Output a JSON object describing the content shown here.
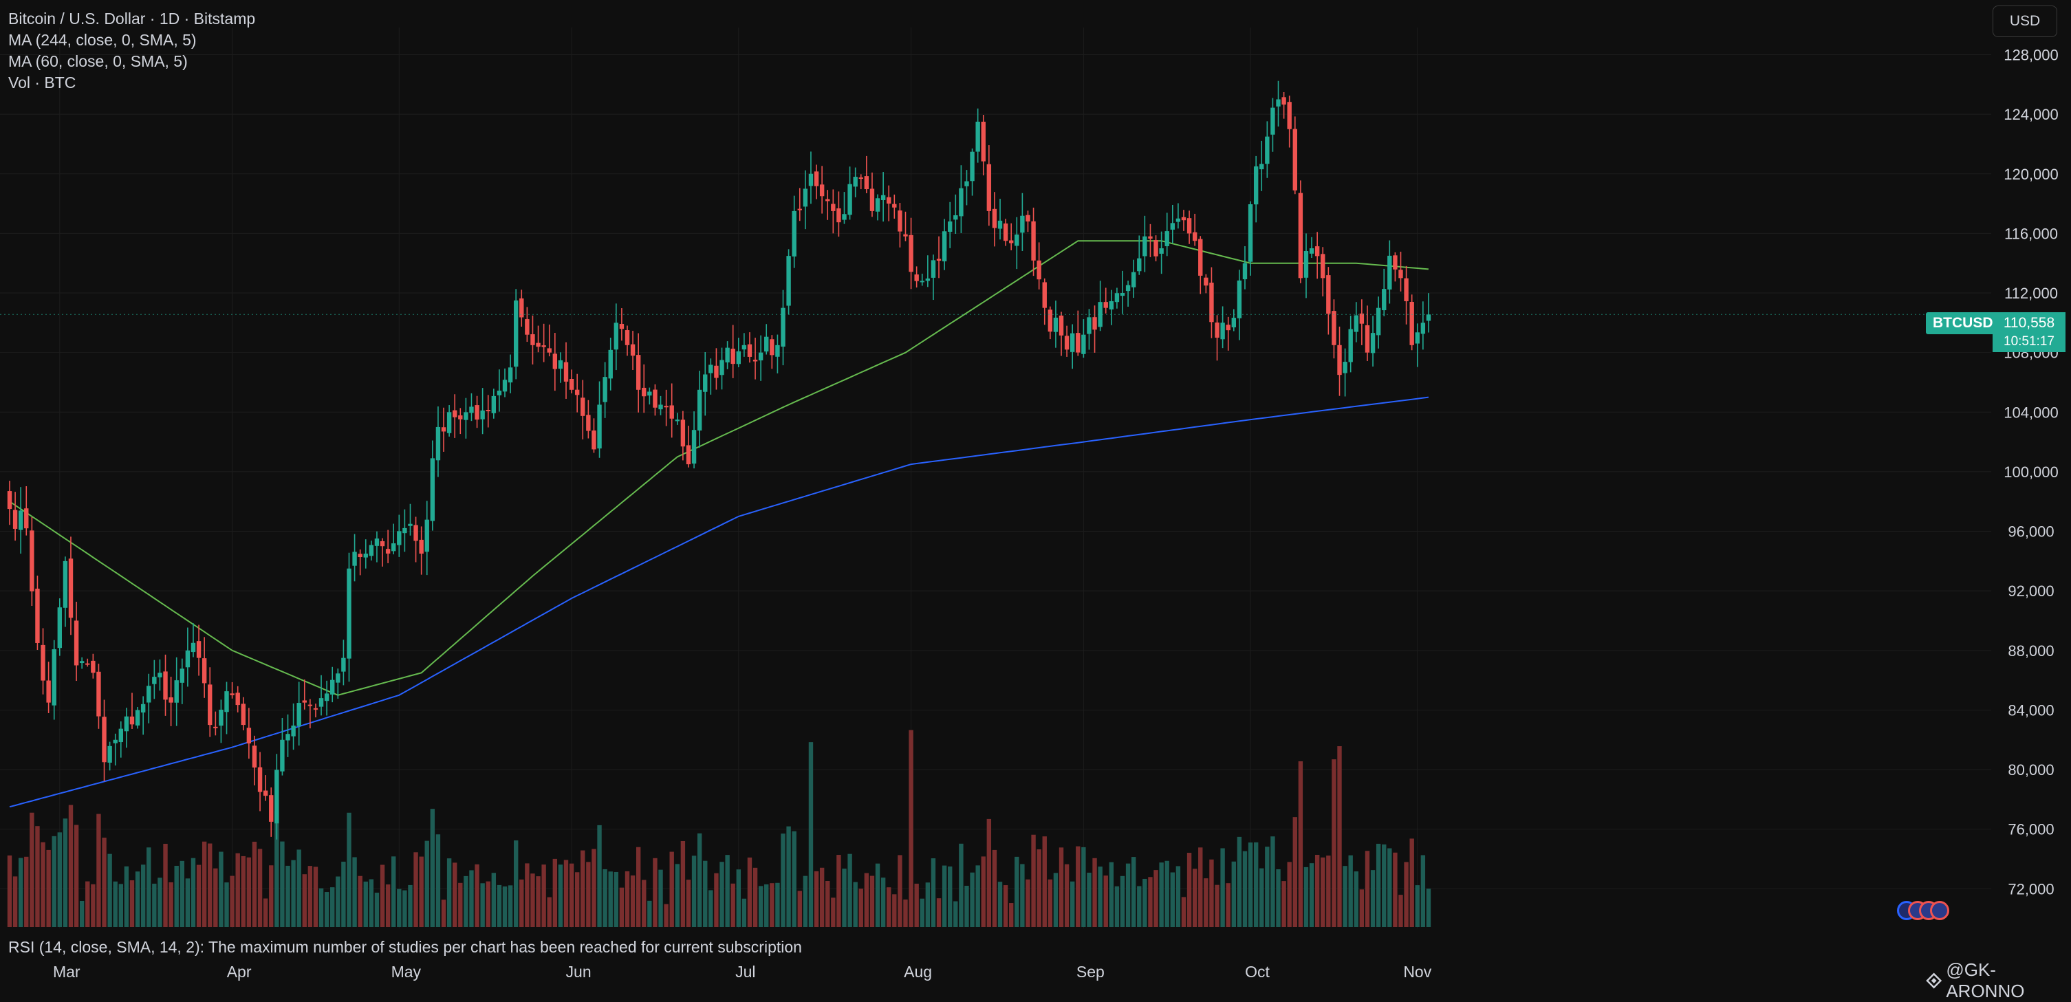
{
  "legend": {
    "symbol": "Bitcoin / U.S. Dollar · 1D · Bitstamp",
    "ma244": "MA (244, close, 0, SMA, 5)",
    "ma60": "MA (60, close, 0, SMA, 5)",
    "vol": "Vol · BTC"
  },
  "currency_button": "USD",
  "price_tag": {
    "ticker": "BTCUSD",
    "price": "110,558",
    "countdown": "10:51:17"
  },
  "rsi_message": "RSI (14, close, SMA, 14, 2): The maximum number of studies per chart has been reached for current subscription",
  "attribution": "@GK-ARONNO",
  "colors": {
    "up": "#22ab94",
    "down": "#ef5350",
    "up_vol": "#1e5d55",
    "down_vol": "#7a2e2e",
    "ma60": "#66bb4f",
    "ma244": "#2962ff",
    "background": "#0f0f0f",
    "grid": "#1d1d1d",
    "text": "#d1d4dc"
  },
  "chart_data": {
    "type": "candlestick",
    "title": "Bitcoin / U.S. Dollar · 1D · Bitstamp",
    "y_axis_ticks": [
      72000,
      76000,
      80000,
      84000,
      88000,
      92000,
      96000,
      100000,
      104000,
      108000,
      112000,
      116000,
      120000,
      124000,
      128000
    ],
    "y_axis_labels": [
      "72,000",
      "76,000",
      "80,000",
      "84,000",
      "88,000",
      "92,000",
      "96,000",
      "100,000",
      "104,000",
      "108,000",
      "112,000",
      "116,000",
      "120,000",
      "124,000",
      "128,000"
    ],
    "x_axis_labels": [
      "Mar",
      "Apr",
      "May",
      "Jun",
      "Jul",
      "Aug",
      "Sep",
      "Oct",
      "Nov"
    ],
    "ylim": [
      69800,
      129500
    ],
    "last_price": 110558,
    "close_anchors": [
      [
        "Feb 20",
        97500
      ],
      [
        "Feb 23",
        96200
      ],
      [
        "Feb 25",
        88500
      ],
      [
        "Feb 27",
        84500
      ],
      [
        "Mar 2",
        94000
      ],
      [
        "Mar 4",
        87000
      ],
      [
        "Mar 7",
        86500
      ],
      [
        "Mar 9",
        80500
      ],
      [
        "Mar 11",
        82000
      ],
      [
        "Mar 15",
        84000
      ],
      [
        "Mar 19",
        86500
      ],
      [
        "Mar 21",
        84500
      ],
      [
        "Mar 24",
        88000
      ],
      [
        "Mar 26",
        87500
      ],
      [
        "Mar 28",
        83000
      ],
      [
        "Apr 1",
        85000
      ],
      [
        "Apr 3",
        83000
      ],
      [
        "Apr 6",
        78500
      ],
      [
        "Apr 8",
        76500
      ],
      [
        "Apr 10",
        82000
      ],
      [
        "Apr 14",
        84500
      ],
      [
        "Apr 17",
        84800
      ],
      [
        "Apr 21",
        87500
      ],
      [
        "Apr 22",
        93500
      ],
      [
        "Apr 25",
        94500
      ],
      [
        "Apr 28",
        95000
      ],
      [
        "May 3",
        96500
      ],
      [
        "May 5",
        94500
      ],
      [
        "May 8",
        103000
      ],
      [
        "May 10",
        104000
      ],
      [
        "May 15",
        103500
      ],
      [
        "May 21",
        107000
      ],
      [
        "May 22",
        111500
      ],
      [
        "May 25",
        108500
      ],
      [
        "May 28",
        108000
      ],
      [
        "Jun 1",
        105500
      ],
      [
        "Jun 5",
        101500
      ],
      [
        "Jun 6",
        104500
      ],
      [
        "Jun 9",
        110000
      ],
      [
        "Jun 11",
        108500
      ],
      [
        "Jun 13",
        105500
      ],
      [
        "Jun 17",
        104500
      ],
      [
        "Jun 20",
        103500
      ],
      [
        "Jun 22",
        100500
      ],
      [
        "Jun 24",
        105500
      ],
      [
        "Jun 28",
        107500
      ],
      [
        "Jul 2",
        108500
      ],
      [
        "Jul 5",
        108000
      ],
      [
        "Jul 8",
        108500
      ],
      [
        "Jul 9",
        111000
      ],
      [
        "Jul 11",
        117500
      ],
      [
        "Jul 13",
        119000
      ],
      [
        "Jul 14",
        120000
      ],
      [
        "Jul 16",
        118500
      ],
      [
        "Jul 18",
        117500
      ],
      [
        "Jul 20",
        117300
      ],
      [
        "Jul 22",
        119800
      ],
      [
        "Jul 25",
        117500
      ],
      [
        "Jul 28",
        118000
      ],
      [
        "Jul 31",
        115800
      ],
      [
        "Aug 2",
        112800
      ],
      [
        "Aug 5",
        114200
      ],
      [
        "Aug 8",
        116800
      ],
      [
        "Aug 11",
        119500
      ],
      [
        "Aug 13",
        123500
      ],
      [
        "Aug 15",
        117500
      ],
      [
        "Aug 18",
        115500
      ],
      [
        "Aug 22",
        116800
      ],
      [
        "Aug 25",
        111000
      ],
      [
        "Aug 29",
        108200
      ],
      [
        "Sep 1",
        109200
      ],
      [
        "Sep 5",
        111000
      ],
      [
        "Sep 8",
        112000
      ],
      [
        "Sep 12",
        115800
      ],
      [
        "Sep 15",
        115000
      ],
      [
        "Sep 18",
        117000
      ],
      [
        "Sep 21",
        115500
      ],
      [
        "Sep 23",
        112500
      ],
      [
        "Sep 25",
        109000
      ],
      [
        "Sep 27",
        109500
      ],
      [
        "Sep 30",
        114000
      ],
      [
        "Oct 2",
        120500
      ],
      [
        "Oct 4",
        122500
      ],
      [
        "Oct 6",
        125000
      ],
      [
        "Oct 8",
        123000
      ],
      [
        "Oct 10",
        113000
      ],
      [
        "Oct 12",
        115000
      ],
      [
        "Oct 14",
        113000
      ],
      [
        "Oct 16",
        108500
      ],
      [
        "Oct 17",
        106500
      ],
      [
        "Oct 20",
        110500
      ],
      [
        "Oct 22",
        108000
      ],
      [
        "Oct 24",
        111000
      ],
      [
        "Oct 26",
        114500
      ],
      [
        "Oct 28",
        113000
      ],
      [
        "Oct 30",
        108500
      ],
      [
        "Nov 1",
        110000
      ],
      [
        "Nov 2",
        110558
      ]
    ],
    "spike_volume_days": [
      "Jul 14",
      "Aug 1",
      "Oct 10",
      "Oct 16",
      "Oct 17"
    ],
    "series": [
      {
        "name": "MA (60, close, 0, SMA, 5)",
        "anchors": [
          [
            "Feb 20",
            98000
          ],
          [
            "Mar 10",
            93500
          ],
          [
            "Apr 1",
            88000
          ],
          [
            "Apr 20",
            85000
          ],
          [
            "May 5",
            86500
          ],
          [
            "May 25",
            93000
          ],
          [
            "Jun 20",
            101000
          ],
          [
            "Jul 10",
            104500
          ],
          [
            "Jul 31",
            108000
          ],
          [
            "Aug 31",
            115500
          ],
          [
            "Sep 15",
            115500
          ],
          [
            "Oct 1",
            114000
          ],
          [
            "Oct 20",
            114000
          ],
          [
            "Nov 2",
            113600
          ]
        ]
      },
      {
        "name": "MA (244, close, 0, SMA, 5)",
        "anchors": [
          [
            "Feb 20",
            77500
          ],
          [
            "Apr 1",
            81500
          ],
          [
            "May 1",
            85000
          ],
          [
            "Jun 1",
            91500
          ],
          [
            "Jul 1",
            97000
          ],
          [
            "Aug 1",
            100500
          ],
          [
            "Sep 1",
            102000
          ],
          [
            "Oct 1",
            103500
          ],
          [
            "Nov 2",
            105000
          ]
        ]
      }
    ]
  }
}
